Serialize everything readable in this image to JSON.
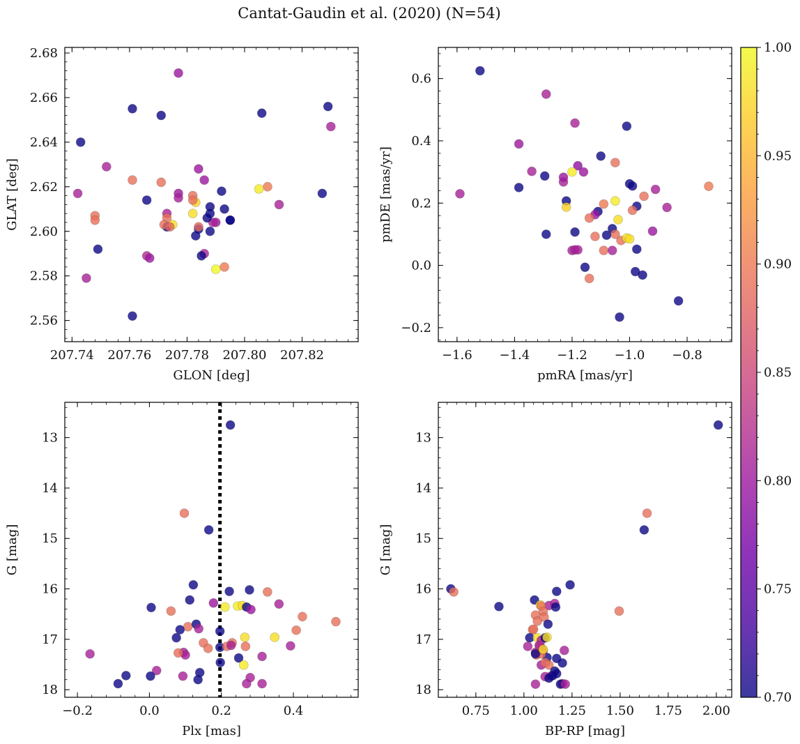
{
  "figure": {
    "title": "Cantat-Gaudin et al. (2020) (N=54)",
    "colormap": [
      "#0d0887",
      "#46039f",
      "#7201a8",
      "#9c179e",
      "#bd3786",
      "#d8576b",
      "#ed7953",
      "#fb9f3a",
      "#fdca26",
      "#f0f921"
    ],
    "point_alpha": 0.8
  },
  "colorbar": {
    "min": 0.7,
    "max": 1.0,
    "tick_labels": [
      "0.70",
      "0.75",
      "0.80",
      "0.85",
      "0.90",
      "0.95",
      "1.00"
    ]
  },
  "chart_data": [
    {
      "id": "radec",
      "type": "scatter",
      "xlabel": "GLON [deg]",
      "ylabel": "GLAT [deg]",
      "xlim": [
        207.7375,
        207.8395
      ],
      "ylim": [
        2.5505,
        2.6825
      ],
      "xticks": [
        207.74,
        207.76,
        207.78,
        207.8,
        207.82
      ],
      "xtick_labels": [
        "207.74",
        "207.76",
        "207.78",
        "207.80",
        "207.82"
      ],
      "yticks": [
        2.56,
        2.58,
        2.6,
        2.62,
        2.64,
        2.66,
        2.68
      ],
      "ytick_labels": [
        "2.56",
        "2.58",
        "2.60",
        "2.62",
        "2.64",
        "2.66",
        "2.68"
      ],
      "x": [
        207.777,
        207.761,
        207.771,
        207.806,
        207.829,
        207.743,
        207.83,
        207.752,
        207.742,
        207.761,
        207.771,
        207.784,
        207.808,
        207.805,
        207.766,
        207.777,
        207.782,
        207.786,
        207.792,
        207.827,
        207.783,
        207.812,
        207.788,
        207.773,
        207.782,
        207.795,
        207.793,
        207.788,
        207.773,
        207.79,
        207.748,
        207.748,
        207.773,
        207.772,
        207.775,
        207.784,
        207.789,
        207.795,
        207.774,
        207.783,
        207.788,
        207.749,
        207.766,
        207.767,
        207.786,
        207.785,
        207.79,
        207.793,
        207.745,
        207.761,
        207.782,
        207.777,
        207.787,
        207.784
      ],
      "y": [
        2.671,
        2.655,
        2.652,
        2.653,
        2.656,
        2.64,
        2.647,
        2.629,
        2.617,
        2.623,
        2.622,
        2.628,
        2.62,
        2.619,
        2.614,
        2.617,
        2.616,
        2.623,
        2.618,
        2.617,
        2.613,
        2.612,
        2.611,
        2.608,
        2.608,
        2.605,
        2.61,
        2.608,
        2.606,
        2.604,
        2.607,
        2.605,
        2.602,
        2.603,
        2.603,
        2.601,
        2.604,
        2.605,
        2.602,
        2.598,
        2.6,
        2.592,
        2.589,
        2.588,
        2.59,
        2.589,
        2.583,
        2.584,
        2.579,
        2.562,
        2.614,
        2.615,
        2.606,
        2.602
      ],
      "c": [
        0.8,
        0.7,
        0.7,
        0.7,
        0.7,
        0.7,
        0.81,
        0.81,
        0.81,
        0.89,
        0.89,
        0.8,
        0.9,
        0.99,
        0.7,
        0.8,
        0.89,
        0.8,
        0.7,
        0.7,
        0.97,
        0.81,
        0.7,
        0.81,
        0.98,
        0.7,
        0.7,
        0.7,
        0.89,
        0.8,
        0.89,
        0.89,
        0.7,
        0.89,
        0.98,
        0.7,
        0.81,
        0.7,
        0.88,
        0.7,
        0.7,
        0.7,
        0.82,
        0.8,
        0.81,
        0.7,
        1.0,
        0.9,
        0.81,
        0.7,
        0.89,
        0.81,
        0.7,
        0.88
      ]
    },
    {
      "id": "pm",
      "type": "scatter",
      "xlabel": "pmRA [mas/yr]",
      "ylabel": "pmDE [mas/yr]",
      "xlim": [
        -1.665,
        -0.645
      ],
      "ylim": [
        -0.245,
        0.7
      ],
      "xticks": [
        -1.6,
        -1.4,
        -1.2,
        -1.0,
        -0.8
      ],
      "xtick_labels": [
        "−1.6",
        "−1.4",
        "−1.2",
        "−1.0",
        "−0.8"
      ],
      "yticks": [
        -0.2,
        0.0,
        0.2,
        0.4,
        0.6
      ],
      "ytick_labels": [
        "−0.2",
        "0.0",
        "0.2",
        "0.4",
        "0.6"
      ],
      "x": [
        -1.52,
        -1.29,
        -1.19,
        -1.01,
        -1.385,
        -1.1,
        -1.34,
        -1.05,
        -1.18,
        -1.2,
        -1.295,
        -1.0,
        -1.16,
        -1.23,
        -0.99,
        -0.91,
        -0.725,
        -1.59,
        -1.385,
        -1.23,
        -1.09,
        -1.05,
        -0.87,
        -0.95,
        -1.11,
        -1.12,
        -0.975,
        -0.99,
        -1.22,
        -0.92,
        -1.03,
        -1.12,
        -1.19,
        -1.06,
        -1.04,
        -1.29,
        -1.05,
        -1.14,
        -1.01,
        -1.09,
        -1.2,
        -1.06,
        -1.19,
        -0.975,
        -1.0,
        -0.955,
        -0.83,
        -1.14,
        -1.155,
        -1.035,
        -1.08,
        -1.18,
        -0.98,
        -1.22
      ],
      "y": [
        0.625,
        0.55,
        0.457,
        0.447,
        0.39,
        0.351,
        0.302,
        0.33,
        0.32,
        0.3,
        0.287,
        0.262,
        0.3,
        0.268,
        0.255,
        0.244,
        0.254,
        0.23,
        0.25,
        0.283,
        0.197,
        0.207,
        0.186,
        0.222,
        0.173,
        0.163,
        0.19,
        0.177,
        0.207,
        0.11,
        0.08,
        0.093,
        0.107,
        0.118,
        0.147,
        0.1,
        0.1,
        0.152,
        0.088,
        0.048,
        0.048,
        0.048,
        0.05,
        0.052,
        0.085,
        -0.031,
        -0.114,
        -0.042,
        -0.006,
        -0.166,
        0.097,
        0.05,
        -0.02,
        0.187
      ],
      "c": [
        0.7,
        0.81,
        0.81,
        0.7,
        0.8,
        0.7,
        0.81,
        0.89,
        0.79,
        0.99,
        0.7,
        0.7,
        0.8,
        0.81,
        0.7,
        0.81,
        0.9,
        0.81,
        0.7,
        0.8,
        0.9,
        0.99,
        0.81,
        0.89,
        0.7,
        0.8,
        0.7,
        0.89,
        0.7,
        0.8,
        0.89,
        0.89,
        0.7,
        0.7,
        0.98,
        0.7,
        0.89,
        0.89,
        0.98,
        0.89,
        0.81,
        0.81,
        0.81,
        0.7,
        0.98,
        0.7,
        0.7,
        0.89,
        0.7,
        0.7,
        0.7,
        0.81,
        0.7,
        0.97
      ]
    },
    {
      "id": "plx",
      "type": "scatter",
      "xlabel": "Plx [mas]",
      "ylabel": "G [mag]",
      "xlim": [
        -0.235,
        0.58
      ],
      "ylim": [
        12.3,
        18.15
      ],
      "y_inverted": true,
      "vline": 0.196,
      "xticks": [
        -0.2,
        0.0,
        0.2,
        0.4
      ],
      "xtick_labels": [
        "−0.2",
        "0.0",
        "0.2",
        "0.4"
      ],
      "yticks": [
        13,
        14,
        15,
        16,
        17,
        18
      ],
      "ytick_labels": [
        "13",
        "14",
        "15",
        "16",
        "17",
        "18"
      ],
      "x": [
        0.225,
        0.097,
        0.165,
        0.122,
        0.222,
        0.278,
        0.112,
        0.005,
        0.06,
        0.178,
        0.245,
        0.258,
        0.328,
        0.36,
        0.27,
        0.282,
        0.107,
        0.21,
        0.425,
        0.408,
        0.518,
        0.075,
        0.085,
        0.13,
        0.137,
        0.23,
        0.265,
        0.348,
        0.267,
        0.095,
        0.1,
        0.248,
        0.313,
        0.392,
        0.15,
        0.196,
        0.215,
        0.227,
        0.262,
        0.197,
        0.02,
        0.093,
        0.14,
        0.28,
        0.163,
        -0.165,
        -0.065,
        -0.087,
        0.003,
        0.27,
        0.313,
        0.135,
        0.196,
        0.08
      ],
      "y": [
        12.75,
        14.5,
        14.83,
        15.92,
        16.05,
        16.02,
        16.22,
        16.37,
        16.44,
        16.28,
        16.34,
        16.33,
        16.06,
        16.3,
        16.36,
        16.41,
        16.75,
        16.36,
        16.55,
        16.82,
        16.65,
        16.97,
        16.81,
        16.7,
        16.79,
        17.07,
        16.96,
        16.96,
        17.14,
        17.26,
        17.31,
        17.37,
        17.34,
        17.13,
        17.07,
        17.16,
        17.14,
        17.12,
        17.51,
        17.46,
        17.62,
        17.73,
        17.66,
        17.76,
        17.18,
        17.29,
        17.72,
        17.88,
        17.73,
        17.88,
        17.88,
        17.8,
        16.84,
        17.27
      ],
      "c": [
        0.7,
        0.89,
        0.7,
        0.7,
        0.7,
        0.7,
        0.7,
        0.7,
        0.89,
        0.8,
        0.99,
        0.98,
        0.89,
        0.81,
        0.7,
        0.8,
        0.89,
        0.99,
        0.89,
        0.89,
        0.89,
        0.7,
        0.7,
        0.7,
        0.81,
        0.89,
        0.98,
        0.98,
        0.89,
        0.81,
        0.81,
        0.7,
        0.81,
        0.81,
        0.89,
        0.7,
        0.89,
        0.81,
        0.99,
        0.7,
        0.81,
        0.81,
        0.7,
        0.81,
        0.89,
        0.81,
        0.7,
        0.7,
        0.7,
        0.81,
        0.81,
        0.7,
        0.7,
        0.89
      ]
    },
    {
      "id": "cmd",
      "type": "scatter",
      "xlabel": "BP-RP [mag]",
      "ylabel": "G [mag]",
      "xlim": [
        0.555,
        2.08
      ],
      "ylim": [
        12.3,
        18.15
      ],
      "y_inverted": true,
      "xticks": [
        0.75,
        1.0,
        1.25,
        1.5,
        1.75,
        2.0
      ],
      "xtick_labels": [
        "0.75",
        "1.00",
        "1.25",
        "1.50",
        "1.75",
        "2.00"
      ],
      "yticks": [
        13,
        14,
        15,
        16,
        17,
        18
      ],
      "ytick_labels": [
        "13",
        "14",
        "15",
        "16",
        "17",
        "18"
      ],
      "x": [
        2.01,
        1.64,
        1.625,
        1.495,
        0.62,
        0.635,
        0.87,
        1.24,
        1.17,
        1.055,
        1.085,
        1.13,
        1.16,
        1.165,
        1.09,
        1.1,
        1.06,
        1.07,
        1.105,
        1.125,
        1.045,
        1.03,
        1.05,
        1.02,
        1.07,
        1.09,
        1.11,
        1.12,
        1.09,
        1.06,
        1.08,
        1.065,
        1.1,
        1.12,
        1.13,
        1.09,
        1.17,
        1.2,
        1.21,
        1.16,
        1.14,
        1.11,
        1.06,
        1.17,
        1.15,
        1.2,
        1.13,
        1.08,
        1.11,
        1.19,
        1.215,
        1.09,
        1.06,
        1.1
      ],
      "y": [
        12.75,
        14.5,
        14.83,
        16.44,
        16.0,
        16.06,
        16.35,
        15.92,
        16.05,
        16.22,
        16.32,
        16.33,
        16.29,
        16.36,
        16.34,
        16.45,
        16.52,
        16.64,
        16.56,
        16.7,
        16.81,
        16.97,
        16.8,
        17.14,
        16.97,
        17.02,
        16.97,
        16.96,
        17.17,
        17.26,
        17.13,
        17.31,
        17.22,
        17.36,
        17.51,
        17.51,
        17.38,
        17.47,
        17.22,
        17.63,
        17.73,
        17.74,
        17.89,
        17.68,
        17.72,
        17.88,
        17.77,
        17.12,
        17.46,
        17.89,
        17.89,
        17.29,
        17.29,
        17.2
      ],
      "c": [
        0.7,
        0.89,
        0.7,
        0.89,
        0.7,
        0.89,
        0.7,
        0.7,
        0.7,
        0.7,
        0.98,
        0.81,
        0.81,
        0.7,
        0.89,
        0.89,
        0.89,
        0.89,
        0.89,
        0.7,
        0.89,
        0.7,
        0.89,
        0.81,
        0.98,
        0.81,
        0.7,
        0.98,
        0.81,
        0.81,
        0.89,
        0.89,
        0.81,
        0.7,
        0.89,
        0.81,
        0.7,
        0.7,
        0.81,
        0.7,
        0.81,
        0.81,
        0.81,
        0.7,
        0.7,
        0.81,
        0.7,
        0.81,
        0.89,
        0.7,
        0.81,
        0.89,
        0.7,
        0.98
      ]
    }
  ]
}
